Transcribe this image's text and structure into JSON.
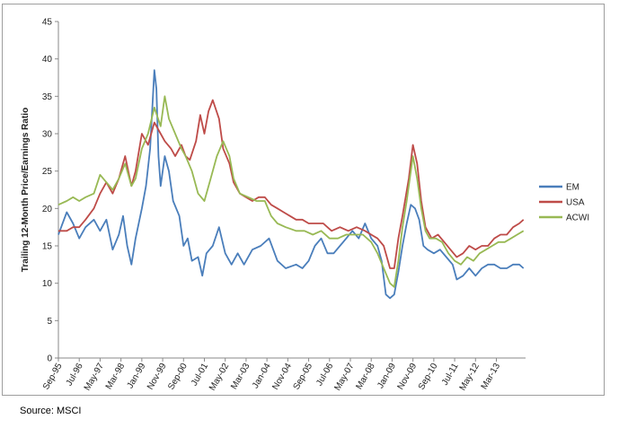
{
  "chart_data": {
    "type": "line",
    "title": "",
    "xlabel": "",
    "ylabel": "Trailing 12-Month Price/Earnings Ratio",
    "ylim": [
      0,
      45
    ],
    "yticks": [
      0,
      5,
      10,
      15,
      20,
      25,
      30,
      35,
      40,
      45
    ],
    "xlim": [
      "1995-09",
      "2014-05"
    ],
    "xticks": [
      "Sep-95",
      "Jul-96",
      "May-97",
      "Mar-98",
      "Jan-99",
      "Nov-99",
      "Sep-00",
      "Jul-01",
      "May-02",
      "Mar-03",
      "Jan-04",
      "Nov-04",
      "Sep-05",
      "Jul-06",
      "May-07",
      "Mar-08",
      "Jan-09",
      "Nov-09",
      "Sep-10",
      "Jul-11",
      "May-12",
      "Mar-13"
    ],
    "grid": false,
    "legend_position": "right",
    "series": [
      {
        "name": "EM",
        "color": "#4a7ebb",
        "points": [
          [
            "1995-09",
            16.5
          ],
          [
            "1996-01",
            19.5
          ],
          [
            "1996-04",
            18
          ],
          [
            "1996-07",
            16
          ],
          [
            "1996-10",
            17.5
          ],
          [
            "1997-02",
            18.5
          ],
          [
            "1997-05",
            17
          ],
          [
            "1997-08",
            18.5
          ],
          [
            "1997-11",
            14.5
          ],
          [
            "1998-02",
            16.5
          ],
          [
            "1998-04",
            19
          ],
          [
            "1998-06",
            15
          ],
          [
            "1998-08",
            12.5
          ],
          [
            "1998-10",
            16
          ],
          [
            "1999-01",
            20
          ],
          [
            "1999-03",
            23
          ],
          [
            "1999-05",
            28
          ],
          [
            "1999-07",
            38.5
          ],
          [
            "1999-08",
            36
          ],
          [
            "1999-09",
            27
          ],
          [
            "1999-10",
            23
          ],
          [
            "1999-12",
            27
          ],
          [
            "2000-02",
            25
          ],
          [
            "2000-04",
            21
          ],
          [
            "2000-07",
            19
          ],
          [
            "2000-09",
            15
          ],
          [
            "2000-11",
            16
          ],
          [
            "2001-01",
            13
          ],
          [
            "2001-04",
            13.5
          ],
          [
            "2001-06",
            11
          ],
          [
            "2001-08",
            14
          ],
          [
            "2001-11",
            15
          ],
          [
            "2002-02",
            17.5
          ],
          [
            "2002-05",
            14
          ],
          [
            "2002-08",
            12.5
          ],
          [
            "2002-11",
            14
          ],
          [
            "2003-02",
            12.5
          ],
          [
            "2003-06",
            14.5
          ],
          [
            "2003-10",
            15
          ],
          [
            "2004-02",
            16
          ],
          [
            "2004-06",
            13
          ],
          [
            "2004-10",
            12
          ],
          [
            "2005-03",
            12.5
          ],
          [
            "2005-06",
            12
          ],
          [
            "2005-09",
            13
          ],
          [
            "2005-12",
            15
          ],
          [
            "2006-03",
            16
          ],
          [
            "2006-06",
            14
          ],
          [
            "2006-09",
            14
          ],
          [
            "2006-12",
            15
          ],
          [
            "2007-03",
            16
          ],
          [
            "2007-06",
            17
          ],
          [
            "2007-09",
            16
          ],
          [
            "2007-12",
            18
          ],
          [
            "2008-03",
            16
          ],
          [
            "2008-06",
            15
          ],
          [
            "2008-08",
            13
          ],
          [
            "2008-10",
            8.5
          ],
          [
            "2008-12",
            8
          ],
          [
            "2009-02",
            8.5
          ],
          [
            "2009-04",
            11.5
          ],
          [
            "2009-06",
            15
          ],
          [
            "2009-08",
            18
          ],
          [
            "2009-10",
            20.5
          ],
          [
            "2009-12",
            20
          ],
          [
            "2010-02",
            18.5
          ],
          [
            "2010-04",
            15
          ],
          [
            "2010-06",
            14.5
          ],
          [
            "2010-09",
            14
          ],
          [
            "2010-12",
            14.5
          ],
          [
            "2011-03",
            13.5
          ],
          [
            "2011-06",
            12.5
          ],
          [
            "2011-08",
            10.5
          ],
          [
            "2011-11",
            11
          ],
          [
            "2012-02",
            12
          ],
          [
            "2012-05",
            11
          ],
          [
            "2012-08",
            12
          ],
          [
            "2012-11",
            12.5
          ],
          [
            "2013-02",
            12.5
          ],
          [
            "2013-05",
            12
          ],
          [
            "2013-08",
            12
          ],
          [
            "2013-11",
            12.5
          ],
          [
            "2014-02",
            12.5
          ],
          [
            "2014-04",
            12
          ]
        ]
      },
      {
        "name": "USA",
        "color": "#be4b48",
        "points": [
          [
            "1995-09",
            17
          ],
          [
            "1996-01",
            17
          ],
          [
            "1996-04",
            17.5
          ],
          [
            "1996-07",
            17.5
          ],
          [
            "1996-10",
            18.5
          ],
          [
            "1997-02",
            20
          ],
          [
            "1997-05",
            22
          ],
          [
            "1997-08",
            23.5
          ],
          [
            "1997-11",
            22
          ],
          [
            "1998-02",
            24
          ],
          [
            "1998-05",
            27
          ],
          [
            "1998-08",
            23
          ],
          [
            "1998-10",
            25
          ],
          [
            "1999-01",
            30
          ],
          [
            "1999-04",
            28.5
          ],
          [
            "1999-07",
            31.5
          ],
          [
            "1999-10",
            30
          ],
          [
            "1999-12",
            29
          ],
          [
            "2000-03",
            28
          ],
          [
            "2000-05",
            27
          ],
          [
            "2000-08",
            28.5
          ],
          [
            "2000-10",
            27
          ],
          [
            "2000-12",
            26.5
          ],
          [
            "2001-03",
            29
          ],
          [
            "2001-05",
            32.5
          ],
          [
            "2001-07",
            30
          ],
          [
            "2001-09",
            33
          ],
          [
            "2001-11",
            34.5
          ],
          [
            "2002-02",
            32
          ],
          [
            "2002-04",
            28
          ],
          [
            "2002-07",
            26
          ],
          [
            "2002-09",
            23.5
          ],
          [
            "2002-12",
            22
          ],
          [
            "2003-03",
            21.5
          ],
          [
            "2003-06",
            21
          ],
          [
            "2003-09",
            21.5
          ],
          [
            "2003-12",
            21.5
          ],
          [
            "2004-03",
            20.5
          ],
          [
            "2004-06",
            20
          ],
          [
            "2004-09",
            19.5
          ],
          [
            "2004-12",
            19
          ],
          [
            "2005-03",
            18.5
          ],
          [
            "2005-06",
            18.5
          ],
          [
            "2005-09",
            18
          ],
          [
            "2005-12",
            18
          ],
          [
            "2006-04",
            18
          ],
          [
            "2006-08",
            17
          ],
          [
            "2006-12",
            17.5
          ],
          [
            "2007-04",
            17
          ],
          [
            "2007-08",
            17.5
          ],
          [
            "2007-12",
            17
          ],
          [
            "2008-03",
            16.5
          ],
          [
            "2008-06",
            16
          ],
          [
            "2008-09",
            15
          ],
          [
            "2008-12",
            12
          ],
          [
            "2009-02",
            12
          ],
          [
            "2009-04",
            16
          ],
          [
            "2009-06",
            19
          ],
          [
            "2009-09",
            24
          ],
          [
            "2009-11",
            28.5
          ],
          [
            "2010-01",
            26
          ],
          [
            "2010-03",
            21
          ],
          [
            "2010-05",
            17.5
          ],
          [
            "2010-08",
            16
          ],
          [
            "2010-11",
            16.5
          ],
          [
            "2011-02",
            15.5
          ],
          [
            "2011-05",
            14.5
          ],
          [
            "2011-08",
            13.5
          ],
          [
            "2011-11",
            14
          ],
          [
            "2012-02",
            15
          ],
          [
            "2012-05",
            14.5
          ],
          [
            "2012-08",
            15
          ],
          [
            "2012-11",
            15
          ],
          [
            "2013-02",
            16
          ],
          [
            "2013-05",
            16.5
          ],
          [
            "2013-08",
            16.5
          ],
          [
            "2013-11",
            17.5
          ],
          [
            "2014-02",
            18
          ],
          [
            "2014-04",
            18.5
          ]
        ]
      },
      {
        "name": "ACWI",
        "color": "#98b954",
        "points": [
          [
            "1995-09",
            20.5
          ],
          [
            "1996-01",
            21
          ],
          [
            "1996-04",
            21.5
          ],
          [
            "1996-07",
            21
          ],
          [
            "1996-10",
            21.5
          ],
          [
            "1997-02",
            22
          ],
          [
            "1997-05",
            24.5
          ],
          [
            "1997-08",
            23.5
          ],
          [
            "1997-11",
            22.5
          ],
          [
            "1998-02",
            24
          ],
          [
            "1998-05",
            26
          ],
          [
            "1998-08",
            23
          ],
          [
            "1998-10",
            24
          ],
          [
            "1999-01",
            28
          ],
          [
            "1999-04",
            30
          ],
          [
            "1999-07",
            33.5
          ],
          [
            "1999-10",
            31
          ],
          [
            "1999-12",
            35
          ],
          [
            "2000-02",
            32
          ],
          [
            "2000-05",
            30
          ],
          [
            "2000-08",
            28
          ],
          [
            "2000-10",
            27
          ],
          [
            "2001-01",
            25
          ],
          [
            "2001-04",
            22
          ],
          [
            "2001-07",
            21
          ],
          [
            "2001-10",
            24
          ],
          [
            "2002-01",
            27
          ],
          [
            "2002-04",
            29
          ],
          [
            "2002-07",
            27
          ],
          [
            "2002-09",
            24
          ],
          [
            "2002-12",
            22
          ],
          [
            "2003-04",
            21.5
          ],
          [
            "2003-08",
            21
          ],
          [
            "2003-12",
            21
          ],
          [
            "2004-03",
            19
          ],
          [
            "2004-06",
            18
          ],
          [
            "2004-10",
            17.5
          ],
          [
            "2005-03",
            17
          ],
          [
            "2005-07",
            17
          ],
          [
            "2005-11",
            16.5
          ],
          [
            "2006-03",
            17
          ],
          [
            "2006-07",
            16
          ],
          [
            "2006-11",
            16
          ],
          [
            "2007-03",
            16.5
          ],
          [
            "2007-07",
            16.5
          ],
          [
            "2007-11",
            16.5
          ],
          [
            "2008-03",
            15.5
          ],
          [
            "2008-06",
            14
          ],
          [
            "2008-09",
            12
          ],
          [
            "2008-12",
            10
          ],
          [
            "2009-02",
            9.5
          ],
          [
            "2009-04",
            13
          ],
          [
            "2009-06",
            17.5
          ],
          [
            "2009-08",
            21
          ],
          [
            "2009-11",
            27
          ],
          [
            "2010-01",
            24
          ],
          [
            "2010-03",
            20
          ],
          [
            "2010-05",
            17
          ],
          [
            "2010-07",
            16
          ],
          [
            "2010-10",
            16
          ],
          [
            "2011-01",
            15.5
          ],
          [
            "2011-04",
            14
          ],
          [
            "2011-07",
            13
          ],
          [
            "2011-10",
            12.5
          ],
          [
            "2012-01",
            13.5
          ],
          [
            "2012-04",
            13
          ],
          [
            "2012-07",
            14
          ],
          [
            "2012-10",
            14.5
          ],
          [
            "2013-01",
            15
          ],
          [
            "2013-04",
            15.5
          ],
          [
            "2013-07",
            15.5
          ],
          [
            "2013-10",
            16
          ],
          [
            "2014-01",
            16.5
          ],
          [
            "2014-04",
            17
          ]
        ]
      }
    ],
    "source_note": "Source: MSCI"
  }
}
